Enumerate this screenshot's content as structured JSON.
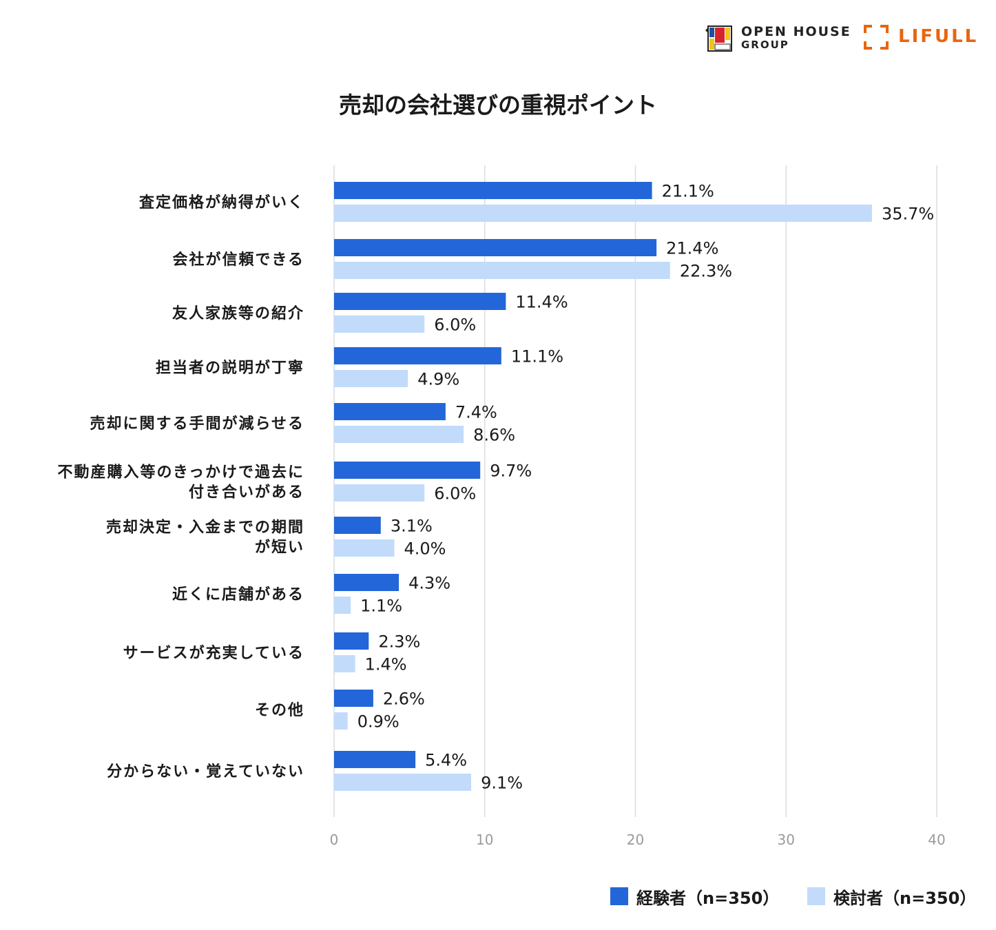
{
  "logos": {
    "openhouse_line1": "OPEN HOUSE",
    "openhouse_line2": "GROUP",
    "lifull": "LIFULL"
  },
  "chart_data": {
    "type": "bar",
    "orientation": "horizontal",
    "title": "売却の会社選びの重視ポイント",
    "categories": [
      [
        "査定価格が納得がいく"
      ],
      [
        "会社が信頼できる"
      ],
      [
        "友人家族等の紹介"
      ],
      [
        "担当者の説明が丁寧"
      ],
      [
        "売却に関する手間が減らせる"
      ],
      [
        "不動産購入等のきっかけで過去に",
        "付き合いがある"
      ],
      [
        "売却決定・入金までの期間",
        "が短い"
      ],
      [
        "近くに店舗がある"
      ],
      [
        "サービスが充実している"
      ],
      [
        "その他"
      ],
      [
        "分からない・覚えていない"
      ]
    ],
    "series": [
      {
        "name": "経験者（n=350）",
        "color": "#2266d9",
        "values": [
          21.1,
          21.4,
          11.4,
          11.1,
          7.4,
          9.7,
          3.1,
          4.3,
          2.3,
          2.6,
          5.4
        ],
        "labels": [
          "21.1%",
          "21.4%",
          "11.4%",
          "11.1%",
          "7.4%",
          "9.7%",
          "3.1%",
          "4.3%",
          "2.3%",
          "2.6%",
          "5.4%"
        ]
      },
      {
        "name": "検討者（n=350）",
        "color": "#c2dbfb",
        "values": [
          35.7,
          22.3,
          6.0,
          4.9,
          8.6,
          6.0,
          4.0,
          1.1,
          1.4,
          0.9,
          9.1
        ],
        "labels": [
          "35.7%",
          "22.3%",
          "6.0%",
          "4.9%",
          "8.6%",
          "6.0%",
          "4.0%",
          "1.1%",
          "1.4%",
          "0.9%",
          "9.1%"
        ]
      }
    ],
    "xlim": [
      0,
      40
    ],
    "xticks": [
      "0",
      "10",
      "20",
      "30",
      "40"
    ],
    "grid": true,
    "legend_position": "bottom-right"
  }
}
